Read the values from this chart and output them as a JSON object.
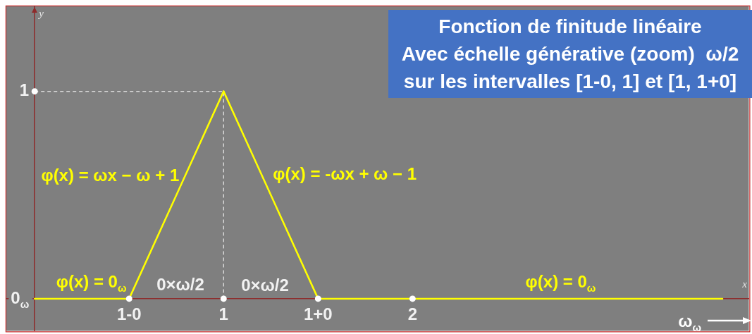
{
  "chart_data": {
    "type": "line",
    "title": "Fonction de finitude linéaire\nAvec échelle générative (zoom)  ω/2\nsur les intervalles [1-0, 1] et [1, 1+0]",
    "xlabel": "x",
    "ylabel": "y",
    "xlim": [
      -0.15,
      3.78
    ],
    "ylim": [
      -0.155,
      1.41
    ],
    "xticks": [
      {
        "value": 0.5,
        "label": "1-0"
      },
      1,
      {
        "value": 1.5,
        "label": "1+0"
      },
      2
    ],
    "yticks": [
      {
        "value": 0,
        "label": "0$_{ω}$"
      },
      1
    ],
    "marker": "none",
    "line_style": "solid",
    "series": [
      {
        "name": "φ(x) = 0$_{ω}$",
        "color": "#ffff00",
        "x": [
          0,
          0.5
        ],
        "values": [
          0,
          0
        ]
      },
      {
        "name": "φ(x) = ωx − ω + 1",
        "color": "#ffff00",
        "x": [
          0.5,
          1
        ],
        "values": [
          0,
          1
        ]
      },
      {
        "name": "φ(x) = -ωx + ω − 1",
        "color": "#ffff00",
        "x": [
          1,
          1.5
        ],
        "values": [
          1,
          0
        ]
      },
      {
        "name": "φ(x) = 0$_{ω}$",
        "color": "#ffff00",
        "x": [
          1.5,
          3.64
        ],
        "values": [
          0,
          0
        ]
      },
      {
        "color": "#d9d9d9",
        "line_style": "dashed",
        "x": [
          0,
          1,
          1
        ],
        "values": [
          1,
          1,
          0
        ]
      },
      {
        "type": "scatter",
        "marker": "circle",
        "color": "#ffffff",
        "x": [
          0,
          0.5,
          1,
          1.5,
          2
        ],
        "values": [
          1,
          0,
          0,
          0,
          0
        ]
      }
    ],
    "annotations": [
      "0×ω/2",
      "0×ω/2",
      "ω$_{ω}$"
    ]
  }
}
